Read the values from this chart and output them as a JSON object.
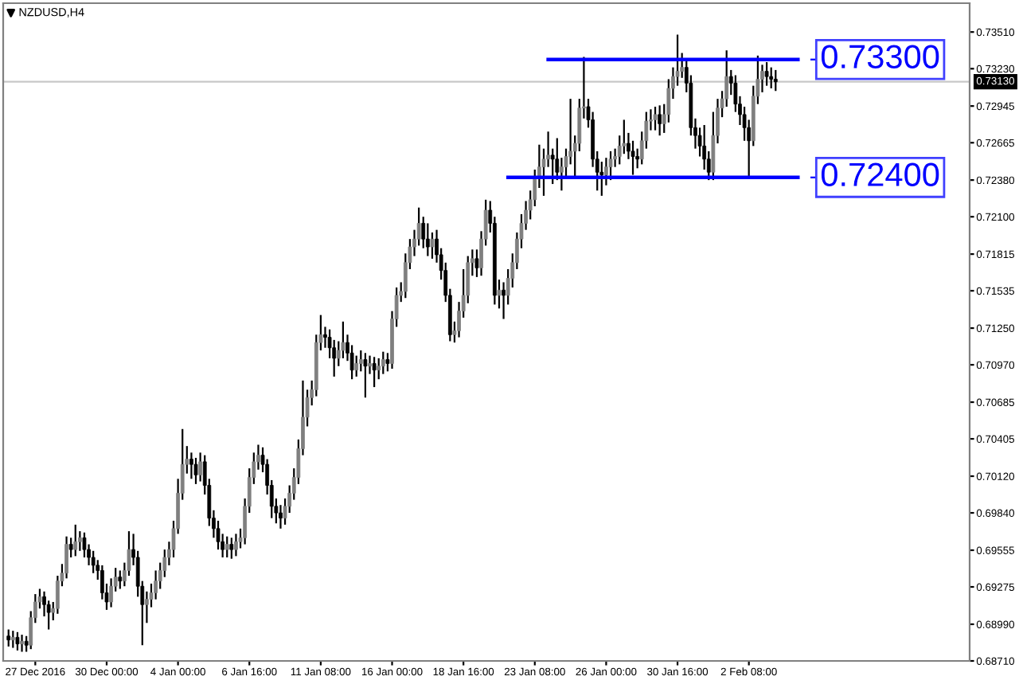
{
  "chart_data": {
    "type": "candlestick",
    "annotations": [
      "NZDUSD,H4",
      "0.73300",
      "0.72400"
    ],
    "colors": [
      "#000000",
      "#7f7f7f",
      "#000000",
      "#7f7f7f",
      "#000000",
      "#7f7f7f",
      "#7f7f7f",
      "#7f7f7f",
      "#000000",
      "#000000",
      "#7f7f7f",
      "#7f7f7f",
      "#7f7f7f",
      "#7f7f7f",
      "#000000",
      "#7f7f7f",
      "#7f7f7f",
      "#000000",
      "#000000",
      "#000000",
      "#000000",
      "#000000",
      "#000000",
      "#7f7f7f",
      "#7f7f7f",
      "#000000",
      "#7f7f7f",
      "#7f7f7f",
      "#000000",
      "#000000",
      "#000000",
      "#7f7f7f",
      "#7f7f7f",
      "#7f7f7f",
      "#7f7f7f",
      "#7f7f7f",
      "#7f7f7f",
      "#7f7f7f",
      "#7f7f7f",
      "#7f7f7f",
      "#7f7f7f",
      "#000000",
      "#000000",
      "#7f7f7f",
      "#000000",
      "#000000",
      "#000000",
      "#000000",
      "#000000",
      "#7f7f7f",
      "#000000",
      "#7f7f7f",
      "#7f7f7f",
      "#7f7f7f",
      "#7f7f7f",
      "#7f7f7f",
      "#7f7f7f",
      "#000000",
      "#000000",
      "#000000",
      "#000000",
      "#000000",
      "#7f7f7f",
      "#7f7f7f",
      "#7f7f7f",
      "#7f7f7f",
      "#7f7f7f",
      "#7f7f7f",
      "#7f7f7f",
      "#7f7f7f",
      "#7f7f7f",
      "#000000",
      "#000000",
      "#000000",
      "#7f7f7f",
      "#7f7f7f",
      "#000000",
      "#000000",
      "#7f7f7f",
      "#7f7f7f",
      "#000000",
      "#7f7f7f",
      "#000000",
      "#7f7f7f",
      "#7f7f7f",
      "#000000",
      "#7f7f7f",
      "#7f7f7f",
      "#7f7f7f",
      "#7f7f7f",
      "#7f7f7f",
      "#7f7f7f",
      "#7f7f7f",
      "#000000",
      "#000000",
      "#7f7f7f",
      "#000000",
      "#000000",
      "#000000",
      "#000000",
      "#7f7f7f",
      "#7f7f7f",
      "#7f7f7f",
      "#7f7f7f",
      "#7f7f7f",
      "#000000",
      "#7f7f7f",
      "#7f7f7f",
      "#000000",
      "#000000",
      "#7f7f7f",
      "#000000",
      "#7f7f7f",
      "#7f7f7f",
      "#7f7f7f",
      "#7f7f7f",
      "#7f7f7f",
      "#7f7f7f",
      "#7f7f7f",
      "#7f7f7f",
      "#7f7f7f",
      "#7f7f7f",
      "#000000",
      "#000000",
      "#7f7f7f",
      "#7f7f7f",
      "#7f7f7f",
      "#7f7f7f",
      "#7f7f7f",
      "#7f7f7f",
      "#000000",
      "#000000",
      "#000000",
      "#000000",
      "#7f7f7f",
      "#7f7f7f",
      "#7f7f7f",
      "#7f7f7f",
      "#7f7f7f",
      "#000000",
      "#000000",
      "#000000",
      "#7f7f7f",
      "#7f7f7f",
      "#7f7f7f",
      "#7f7f7f",
      "#000000",
      "#7f7f7f",
      "#7f7f7f",
      "#7f7f7f",
      "#7f7f7f",
      "#7f7f7f",
      "#000000",
      "#000000",
      "#000000",
      "#000000",
      "#000000",
      "#000000",
      "#7f7f7f",
      "#7f7f7f",
      "#7f7f7f",
      "#7f7f7f",
      "#000000",
      "#000000",
      "#000000",
      "#000000",
      "#000000",
      "#7f7f7f",
      "#7f7f7f",
      "#7f7f7f",
      "#000000",
      "#000000",
      "#000000",
      null,
      null,
      null,
      null,
      null,
      null,
      null,
      null,
      null,
      null,
      null,
      null,
      null,
      null,
      null,
      null,
      null,
      null,
      null,
      null,
      null,
      null,
      null,
      null,
      null,
      null,
      null,
      null,
      null,
      null,
      null,
      null,
      null,
      null,
      null,
      null,
      null,
      null,
      null,
      null,
      null,
      null,
      null
    ],
    "categories": [
      null,
      null,
      null,
      null,
      null,
      null,
      "27 Dec 2016",
      null,
      null,
      null,
      null,
      null,
      null,
      null,
      null,
      null,
      null,
      null,
      null,
      null,
      null,
      null,
      "30 Dec 00:00",
      null,
      null,
      null,
      null,
      null,
      null,
      null,
      null,
      null,
      null,
      null,
      null,
      null,
      null,
      null,
      "4 Jan 00:00",
      null,
      null,
      null,
      null,
      null,
      null,
      null,
      null,
      null,
      null,
      null,
      null,
      null,
      null,
      null,
      "6 Jan 16:00",
      null,
      null,
      null,
      null,
      null,
      null,
      null,
      null,
      null,
      null,
      null,
      null,
      null,
      null,
      null,
      "11 Jan 08:00",
      null,
      null,
      null,
      null,
      null,
      null,
      null,
      null,
      null,
      null,
      null,
      null,
      null,
      null,
      null,
      "16 Jan 00:00",
      null,
      null,
      null,
      null,
      null,
      null,
      null,
      null,
      null,
      null,
      null,
      null,
      null,
      null,
      null,
      "18 Jan 16:00",
      null,
      null,
      null,
      null,
      null,
      null,
      null,
      null,
      null,
      null,
      null,
      null,
      null,
      null,
      null,
      "23 Jan 08:00",
      null,
      null,
      null,
      null,
      null,
      null,
      null,
      null,
      null,
      null,
      null,
      null,
      null,
      null,
      null,
      "26 Jan 00:00",
      null,
      null,
      null,
      null,
      null,
      null,
      null,
      null,
      null,
      null,
      null,
      null,
      null,
      null,
      null,
      "30 Jan 16:00",
      null,
      null,
      null,
      null,
      null,
      null,
      null,
      null,
      null,
      null,
      null,
      null,
      null,
      null,
      null,
      "2 Feb 08:00",
      null,
      null,
      null,
      null,
      null,
      null,
      null,
      null,
      null,
      null,
      null,
      null,
      null,
      null,
      null,
      null,
      null,
      null,
      null,
      null,
      null,
      null,
      null,
      null,
      null,
      null,
      null,
      null,
      null,
      null,
      null,
      null,
      null,
      null,
      null,
      null,
      null,
      null,
      null,
      null,
      null,
      null,
      null,
      null,
      null,
      null,
      null,
      null,
      null
    ],
    "ohlc": [
      [
        0.689,
        0.6895,
        0.6882,
        0.6887
      ],
      [
        0.6887,
        0.6894,
        0.6881,
        0.6889
      ],
      [
        0.6889,
        0.6893,
        0.6879,
        0.6884
      ],
      [
        0.6884,
        0.6891,
        0.6878,
        0.6886
      ],
      [
        0.6886,
        0.689,
        0.6878,
        0.6883
      ],
      [
        0.6883,
        0.6909,
        0.688,
        0.6904
      ],
      [
        0.6904,
        0.6922,
        0.69,
        0.6916
      ],
      [
        0.6916,
        0.6926,
        0.6911,
        0.692
      ],
      [
        0.692,
        0.6924,
        0.6905,
        0.6914
      ],
      [
        0.6914,
        0.6917,
        0.6895,
        0.6908
      ],
      [
        0.6908,
        0.6916,
        0.6902,
        0.6911
      ],
      [
        0.6911,
        0.6936,
        0.6907,
        0.6932
      ],
      [
        0.6932,
        0.6945,
        0.6928,
        0.6938
      ],
      [
        0.6938,
        0.6966,
        0.6934,
        0.696
      ],
      [
        0.696,
        0.6965,
        0.695,
        0.6956
      ],
      [
        0.6956,
        0.6975,
        0.6951,
        0.6962
      ],
      [
        0.6962,
        0.697,
        0.6955,
        0.6965
      ],
      [
        0.6965,
        0.6969,
        0.695,
        0.6956
      ],
      [
        0.6956,
        0.696,
        0.6944,
        0.695
      ],
      [
        0.695,
        0.6955,
        0.6938,
        0.6944
      ],
      [
        0.6944,
        0.6948,
        0.6933,
        0.694
      ],
      [
        0.694,
        0.6944,
        0.6918,
        0.6923
      ],
      [
        0.6923,
        0.693,
        0.691,
        0.6916
      ],
      [
        0.6916,
        0.6934,
        0.6912,
        0.6928
      ],
      [
        0.6928,
        0.6942,
        0.6924,
        0.6935
      ],
      [
        0.6935,
        0.694,
        0.6926,
        0.6932
      ],
      [
        0.6932,
        0.6946,
        0.6928,
        0.694
      ],
      [
        0.694,
        0.697,
        0.6936,
        0.6956
      ],
      [
        0.6956,
        0.6968,
        0.6944,
        0.695
      ],
      [
        0.695,
        0.6955,
        0.692,
        0.6928
      ],
      [
        0.6928,
        0.6932,
        0.6883,
        0.6914
      ],
      [
        0.6914,
        0.6924,
        0.69,
        0.6918
      ],
      [
        0.6918,
        0.693,
        0.6912,
        0.6923
      ],
      [
        0.6923,
        0.694,
        0.6918,
        0.6932
      ],
      [
        0.6932,
        0.6946,
        0.6926,
        0.694
      ],
      [
        0.694,
        0.6956,
        0.6935,
        0.695
      ],
      [
        0.695,
        0.6962,
        0.6944,
        0.6956
      ],
      [
        0.6956,
        0.6978,
        0.695,
        0.6972
      ],
      [
        0.6972,
        0.701,
        0.6968,
        0.6999
      ],
      [
        0.6999,
        0.7048,
        0.6994,
        0.7021
      ],
      [
        0.7021,
        0.7035,
        0.7014,
        0.7025
      ],
      [
        0.7025,
        0.703,
        0.701,
        0.7021
      ],
      [
        0.7021,
        0.7026,
        0.7006,
        0.7013
      ],
      [
        0.7013,
        0.703,
        0.7008,
        0.7023
      ],
      [
        0.7023,
        0.7028,
        0.6998,
        0.7005
      ],
      [
        0.7005,
        0.701,
        0.6974,
        0.698
      ],
      [
        0.698,
        0.6986,
        0.6965,
        0.6972
      ],
      [
        0.6972,
        0.6978,
        0.6956,
        0.6962
      ],
      [
        0.6962,
        0.6968,
        0.695,
        0.6956
      ],
      [
        0.6956,
        0.6966,
        0.695,
        0.696
      ],
      [
        0.696,
        0.6965,
        0.6949,
        0.6956
      ],
      [
        0.6956,
        0.6968,
        0.6951,
        0.6962
      ],
      [
        0.6962,
        0.6972,
        0.6957,
        0.6965
      ],
      [
        0.6965,
        0.6995,
        0.696,
        0.6989
      ],
      [
        0.6989,
        0.7018,
        0.6984,
        0.7011
      ],
      [
        0.7011,
        0.703,
        0.7006,
        0.7023
      ],
      [
        0.7023,
        0.7036,
        0.7017,
        0.7028
      ],
      [
        0.7028,
        0.7034,
        0.7015,
        0.7021
      ],
      [
        0.7021,
        0.7025,
        0.6998,
        0.7005
      ],
      [
        0.7005,
        0.7009,
        0.698,
        0.6989
      ],
      [
        0.6989,
        0.6995,
        0.6976,
        0.6984
      ],
      [
        0.6984,
        0.699,
        0.6972,
        0.698
      ],
      [
        0.698,
        0.6995,
        0.6975,
        0.6989
      ],
      [
        0.6989,
        0.7005,
        0.6984,
        0.6999
      ],
      [
        0.6999,
        0.7018,
        0.6994,
        0.7011
      ],
      [
        0.7011,
        0.704,
        0.7006,
        0.7033
      ],
      [
        0.7033,
        0.7085,
        0.7028,
        0.7057
      ],
      [
        0.7057,
        0.7078,
        0.705,
        0.7072
      ],
      [
        0.7072,
        0.7085,
        0.7066,
        0.7078
      ],
      [
        0.7078,
        0.712,
        0.7073,
        0.7114
      ],
      [
        0.7114,
        0.7135,
        0.7108,
        0.712
      ],
      [
        0.712,
        0.7126,
        0.711,
        0.7118
      ],
      [
        0.7118,
        0.7124,
        0.7102,
        0.711
      ],
      [
        0.711,
        0.7116,
        0.7088,
        0.7102
      ],
      [
        0.7102,
        0.7115,
        0.7096,
        0.7108
      ],
      [
        0.7108,
        0.713,
        0.7102,
        0.7114
      ],
      [
        0.7114,
        0.712,
        0.71,
        0.7106
      ],
      [
        0.7106,
        0.7112,
        0.7086,
        0.7093
      ],
      [
        0.7093,
        0.7104,
        0.7088,
        0.7098
      ],
      [
        0.7098,
        0.7108,
        0.7092,
        0.7101
      ],
      [
        0.7101,
        0.7106,
        0.7072,
        0.7096
      ],
      [
        0.7096,
        0.7104,
        0.709,
        0.7098
      ],
      [
        0.7098,
        0.7103,
        0.708,
        0.7093
      ],
      [
        0.7093,
        0.7102,
        0.7086,
        0.7096
      ],
      [
        0.7096,
        0.7107,
        0.709,
        0.7101
      ],
      [
        0.7101,
        0.7106,
        0.7092,
        0.7098
      ],
      [
        0.7098,
        0.7138,
        0.7094,
        0.7132
      ],
      [
        0.7132,
        0.7156,
        0.7126,
        0.715
      ],
      [
        0.715,
        0.716,
        0.7145,
        0.7153
      ],
      [
        0.7153,
        0.7182,
        0.7148,
        0.7175
      ],
      [
        0.7175,
        0.7193,
        0.717,
        0.7187
      ],
      [
        0.7187,
        0.72,
        0.718,
        0.7193
      ],
      [
        0.7193,
        0.7217,
        0.7188,
        0.7205
      ],
      [
        0.7205,
        0.721,
        0.7186,
        0.7193
      ],
      [
        0.7193,
        0.7205,
        0.718,
        0.7187
      ],
      [
        0.7187,
        0.7198,
        0.7178,
        0.7193
      ],
      [
        0.7193,
        0.72,
        0.7175,
        0.7181
      ],
      [
        0.7181,
        0.7186,
        0.7162,
        0.7169
      ],
      [
        0.7169,
        0.7175,
        0.7145,
        0.715
      ],
      [
        0.715,
        0.7155,
        0.7115,
        0.712
      ],
      [
        0.712,
        0.713,
        0.7114,
        0.7123
      ],
      [
        0.7123,
        0.7145,
        0.7118,
        0.7138
      ],
      [
        0.7138,
        0.717,
        0.7133,
        0.715
      ],
      [
        0.715,
        0.718,
        0.7144,
        0.7175
      ],
      [
        0.7175,
        0.7185,
        0.7165,
        0.7178
      ],
      [
        0.7178,
        0.7185,
        0.7164,
        0.7171
      ],
      [
        0.7171,
        0.7199,
        0.7165,
        0.7193
      ],
      [
        0.7193,
        0.7223,
        0.7188,
        0.7215
      ],
      [
        0.7215,
        0.7222,
        0.7198,
        0.7205
      ],
      [
        0.7205,
        0.721,
        0.7143,
        0.715
      ],
      [
        0.715,
        0.7162,
        0.714,
        0.7154
      ],
      [
        0.7154,
        0.716,
        0.7132,
        0.715
      ],
      [
        0.715,
        0.717,
        0.7143,
        0.7163
      ],
      [
        0.7163,
        0.7182,
        0.7156,
        0.7175
      ],
      [
        0.7175,
        0.7198,
        0.717,
        0.7193
      ],
      [
        0.7193,
        0.7212,
        0.7186,
        0.7205
      ],
      [
        0.7205,
        0.7222,
        0.72,
        0.7215
      ],
      [
        0.7215,
        0.723,
        0.7208,
        0.7223
      ],
      [
        0.7223,
        0.7246,
        0.7218,
        0.7239
      ],
      [
        0.7239,
        0.7265,
        0.7232,
        0.7248
      ],
      [
        0.7248,
        0.7262,
        0.7226,
        0.7254
      ],
      [
        0.7254,
        0.7275,
        0.7248,
        0.7257
      ],
      [
        0.7257,
        0.7262,
        0.7235,
        0.7254
      ],
      [
        0.7254,
        0.727,
        0.7238,
        0.7244
      ],
      [
        0.7244,
        0.7255,
        0.723,
        0.7248
      ],
      [
        0.7248,
        0.7262,
        0.724,
        0.7256
      ],
      [
        0.7256,
        0.73,
        0.725,
        0.726
      ],
      [
        0.726,
        0.7272,
        0.724,
        0.7266
      ],
      [
        0.7266,
        0.73,
        0.726,
        0.7293
      ],
      [
        0.7293,
        0.7332,
        0.7285,
        0.7294
      ],
      [
        0.7294,
        0.73,
        0.7278,
        0.7284
      ],
      [
        0.7284,
        0.729,
        0.7248,
        0.7254
      ],
      [
        0.7254,
        0.726,
        0.723,
        0.7244
      ],
      [
        0.7244,
        0.7252,
        0.7226,
        0.7242
      ],
      [
        0.7242,
        0.7255,
        0.7234,
        0.7248
      ],
      [
        0.7248,
        0.726,
        0.7238,
        0.7254
      ],
      [
        0.7254,
        0.7262,
        0.7248,
        0.7256
      ],
      [
        0.7256,
        0.7272,
        0.725,
        0.7264
      ],
      [
        0.7264,
        0.7284,
        0.7258,
        0.7266
      ],
      [
        0.7266,
        0.7274,
        0.7254,
        0.726
      ],
      [
        0.726,
        0.7268,
        0.7242,
        0.7256
      ],
      [
        0.7256,
        0.7262,
        0.7247,
        0.7254
      ],
      [
        0.7254,
        0.7275,
        0.725,
        0.7268
      ],
      [
        0.7268,
        0.729,
        0.7262,
        0.7283
      ],
      [
        0.7283,
        0.7292,
        0.7276,
        0.7284
      ],
      [
        0.7284,
        0.7294,
        0.7276,
        0.7288
      ],
      [
        0.7288,
        0.7295,
        0.7272,
        0.7281
      ],
      [
        0.7281,
        0.7296,
        0.7274,
        0.7288
      ],
      [
        0.7288,
        0.7315,
        0.7282,
        0.7308
      ],
      [
        0.7308,
        0.7324,
        0.73,
        0.7317
      ],
      [
        0.7317,
        0.7349,
        0.731,
        0.7321
      ],
      [
        0.7321,
        0.7335,
        0.7316,
        0.7324
      ],
      [
        0.7324,
        0.733,
        0.7305,
        0.7312
      ],
      [
        0.7312,
        0.7318,
        0.7272,
        0.7278
      ],
      [
        0.7278,
        0.7285,
        0.7262,
        0.7272
      ],
      [
        0.7272,
        0.7278,
        0.7256,
        0.7264
      ],
      [
        0.7264,
        0.728,
        0.7246,
        0.7254
      ],
      [
        0.7254,
        0.726,
        0.7238,
        0.7244
      ],
      [
        0.7244,
        0.729,
        0.7238,
        0.7272
      ],
      [
        0.7272,
        0.73,
        0.7266,
        0.7293
      ],
      [
        0.7293,
        0.7306,
        0.7286,
        0.73
      ],
      [
        0.73,
        0.7337,
        0.7294,
        0.7317
      ],
      [
        0.7317,
        0.7322,
        0.7303,
        0.7312
      ],
      [
        0.7312,
        0.7318,
        0.729,
        0.7296
      ],
      [
        0.7296,
        0.7302,
        0.728,
        0.7288
      ],
      [
        0.7288,
        0.7294,
        0.7268,
        0.7278
      ],
      [
        0.7278,
        0.7284,
        0.7239,
        0.7268
      ],
      [
        0.7268,
        0.731,
        0.7264,
        0.7302
      ],
      [
        0.7302,
        0.7333,
        0.7296,
        0.7315
      ],
      [
        0.7315,
        0.7326,
        0.7305,
        0.7321
      ],
      [
        0.7321,
        0.7328,
        0.731,
        0.7317
      ],
      [
        0.7317,
        0.7324,
        0.7308,
        0.7315
      ],
      [
        0.7315,
        0.7322,
        0.7306,
        0.7313
      ],
      null,
      null,
      null,
      null,
      null,
      null,
      null,
      null,
      null,
      null,
      null,
      null,
      null,
      null,
      null,
      null,
      null,
      null,
      null,
      null,
      null,
      null,
      null,
      null,
      null,
      null,
      null,
      null,
      null,
      null,
      null,
      null,
      null,
      null,
      null,
      null,
      null,
      null,
      null,
      null,
      null,
      null,
      null
    ],
    "series": [
      {
        "type": "line",
        "color": "#0000ff",
        "values": [
          null,
          null,
          null,
          null,
          null,
          null,
          null,
          null,
          null,
          null,
          null,
          null,
          null,
          null,
          null,
          null,
          null,
          null,
          null,
          null,
          null,
          null,
          null,
          null,
          null,
          null,
          null,
          null,
          null,
          null,
          null,
          null,
          null,
          null,
          null,
          null,
          null,
          null,
          null,
          null,
          null,
          null,
          null,
          null,
          null,
          null,
          null,
          null,
          null,
          null,
          null,
          null,
          null,
          null,
          null,
          null,
          null,
          null,
          null,
          null,
          null,
          null,
          null,
          null,
          null,
          null,
          null,
          null,
          null,
          null,
          null,
          null,
          null,
          null,
          null,
          null,
          null,
          null,
          null,
          null,
          null,
          null,
          null,
          null,
          null,
          null,
          null,
          null,
          null,
          null,
          null,
          null,
          null,
          null,
          null,
          null,
          null,
          null,
          null,
          null,
          null,
          null,
          null,
          null,
          null,
          null,
          null,
          null,
          null,
          null,
          null,
          null,
          null,
          null,
          null,
          null,
          null,
          null,
          null,
          null,
          null,
          0.733,
          0.733,
          0.733,
          0.733,
          0.733,
          0.733,
          0.733,
          0.733,
          0.733,
          0.733,
          0.733,
          0.733,
          0.733,
          0.733,
          0.733,
          0.733,
          0.733,
          0.733,
          0.733,
          0.733,
          0.733,
          0.733,
          0.733,
          0.733,
          0.733,
          0.733,
          0.733,
          0.733,
          0.733,
          0.733,
          0.733,
          0.733,
          0.733,
          0.733,
          0.733,
          0.733,
          0.733,
          0.733,
          0.733,
          0.733,
          0.733,
          0.733,
          0.733,
          0.733,
          0.733,
          0.733,
          0.733,
          0.733,
          0.733,
          0.733,
          0.733,
          0.733,
          0.733,
          0.733,
          0.733,
          0.733,
          0.733,
          null,
          null,
          null,
          null,
          null,
          null,
          null,
          null,
          null,
          null,
          null,
          null,
          null,
          null,
          null,
          null,
          null,
          null,
          null,
          null,
          null,
          null,
          null,
          null,
          null,
          null,
          null,
          null,
          null,
          null,
          null,
          null,
          null,
          null,
          null,
          null,
          null,
          null
        ]
      },
      {
        "type": "line",
        "color": "#0000ff",
        "values": [
          null,
          null,
          null,
          null,
          null,
          null,
          null,
          null,
          null,
          null,
          null,
          null,
          null,
          null,
          null,
          null,
          null,
          null,
          null,
          null,
          null,
          null,
          null,
          null,
          null,
          null,
          null,
          null,
          null,
          null,
          null,
          null,
          null,
          null,
          null,
          null,
          null,
          null,
          null,
          null,
          null,
          null,
          null,
          null,
          null,
          null,
          null,
          null,
          null,
          null,
          null,
          null,
          null,
          null,
          null,
          null,
          null,
          null,
          null,
          null,
          null,
          null,
          null,
          null,
          null,
          null,
          null,
          null,
          null,
          null,
          null,
          null,
          null,
          null,
          null,
          null,
          null,
          null,
          null,
          null,
          null,
          null,
          null,
          null,
          null,
          null,
          null,
          null,
          null,
          null,
          null,
          null,
          null,
          null,
          null,
          null,
          null,
          null,
          null,
          null,
          null,
          null,
          null,
          null,
          null,
          null,
          null,
          null,
          null,
          null,
          null,
          null,
          0.724,
          0.724,
          0.724,
          0.724,
          0.724,
          0.724,
          0.724,
          0.724,
          0.724,
          0.724,
          0.724,
          0.724,
          0.724,
          0.724,
          0.724,
          0.724,
          0.724,
          0.724,
          0.724,
          0.724,
          0.724,
          0.724,
          0.724,
          0.724,
          0.724,
          0.724,
          0.724,
          0.724,
          0.724,
          0.724,
          0.724,
          0.724,
          0.724,
          0.724,
          0.724,
          0.724,
          0.724,
          0.724,
          0.724,
          0.724,
          0.724,
          0.724,
          0.724,
          0.724,
          0.724,
          0.724,
          0.724,
          0.724,
          0.724,
          0.724,
          0.724,
          0.724,
          0.724,
          0.724,
          0.724,
          0.724,
          0.724,
          0.724,
          0.724,
          0.724,
          0.724,
          0.724,
          0.724,
          0.724,
          0.724,
          0.724,
          null,
          null,
          null,
          null,
          null,
          null,
          null,
          null,
          null,
          null,
          null,
          null,
          null,
          null,
          null,
          null,
          null,
          null,
          null,
          null,
          null,
          null,
          null,
          null,
          null,
          null,
          null,
          null,
          null,
          null,
          null,
          null,
          null,
          null,
          null,
          null,
          null,
          null
        ]
      }
    ],
    "ref_lines": [
      {
        "axis": "y",
        "value": 0.7313,
        "label": "0.73130",
        "color": "#c8c8c8"
      }
    ],
    "ylim": [
      0.6871,
      0.7373
    ],
    "yticks": [
      {
        "value": 0.7351,
        "label": "0.73510"
      },
      {
        "value": 0.7323,
        "label": "0.73230"
      },
      {
        "value": 0.72945,
        "label": "0.72945"
      },
      {
        "value": 0.72665,
        "label": "0.72665"
      },
      {
        "value": 0.7238,
        "label": "0.72380"
      },
      {
        "value": 0.721,
        "label": "0.72100"
      },
      {
        "value": 0.71815,
        "label": "0.71815"
      },
      {
        "value": 0.71535,
        "label": "0.71535"
      },
      {
        "value": 0.7125,
        "label": "0.71250"
      },
      {
        "value": 0.7097,
        "label": "0.70970"
      },
      {
        "value": 0.70685,
        "label": "0.70685"
      },
      {
        "value": 0.70405,
        "label": "0.70405"
      },
      {
        "value": 0.7012,
        "label": "0.70120"
      },
      {
        "value": 0.6984,
        "label": "0.69840"
      },
      {
        "value": 0.69555,
        "label": "0.69555"
      },
      {
        "value": 0.69275,
        "label": "0.69275"
      },
      {
        "value": 0.6899,
        "label": "0.68990"
      },
      {
        "value": 0.6871,
        "label": "0.68710"
      }
    ],
    "grid": false,
    "legend": false
  }
}
